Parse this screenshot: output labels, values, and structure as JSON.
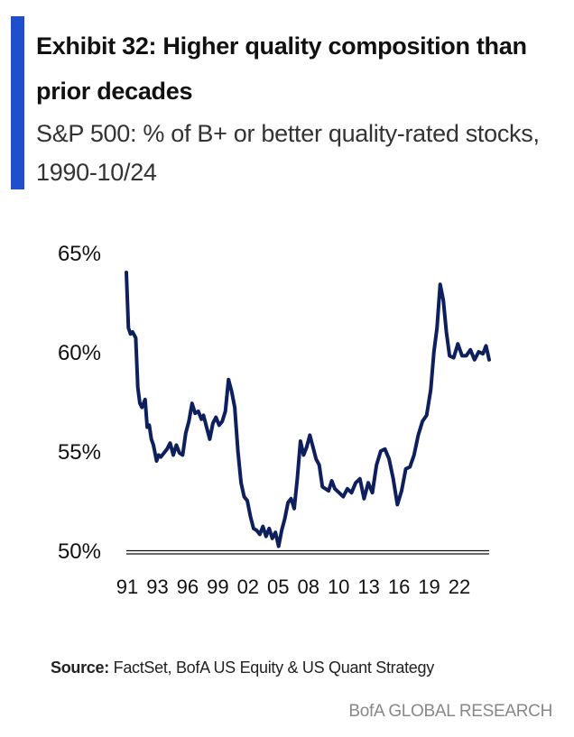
{
  "header": {
    "title": "Exhibit 32: Higher quality composition than prior decades",
    "subtitle": "S&P 500: % of B+ or better quality-rated stocks, 1990-10/24"
  },
  "colors": {
    "accent": "#1f4fcc",
    "line": "#0d1f5c",
    "axis": "#111111"
  },
  "chart_data": {
    "type": "line",
    "title": "",
    "xlabel": "",
    "ylabel": "",
    "ylim": [
      50,
      65
    ],
    "yticks": [
      "50%",
      "55%",
      "60%",
      "65%"
    ],
    "xticks": [
      "91",
      "93",
      "96",
      "99",
      "02",
      "05",
      "08",
      "10",
      "13",
      "16",
      "19",
      "22"
    ],
    "grid": false,
    "legend": "none",
    "series": [
      {
        "x": [
          1990.0,
          1990.2,
          1990.4,
          1990.6,
          1990.9,
          1991.1,
          1991.3,
          1991.5,
          1991.8,
          1992.0,
          1992.2,
          1992.4,
          1992.6,
          1992.9,
          1993.1,
          1993.3,
          1993.6,
          1993.9,
          1994.2,
          1994.5,
          1994.8,
          1995.1,
          1995.4,
          1995.7,
          1996.0,
          1996.3,
          1996.6,
          1996.9,
          1997.2,
          1997.4,
          1997.7,
          1998.0,
          1998.3,
          1998.6,
          1998.9,
          1999.2,
          1999.5,
          1999.8,
          2000.1,
          2000.4,
          2000.7,
          2001.0,
          2001.3,
          2001.6,
          2001.9,
          2002.2,
          2002.5,
          2002.8,
          2003.1,
          2003.4,
          2003.7,
          2004.0,
          2004.3,
          2004.6,
          2004.9,
          2005.2,
          2005.5,
          2005.8,
          2006.1,
          2006.4,
          2006.7,
          2007.0,
          2007.3,
          2007.6,
          2007.9,
          2008.2,
          2008.5,
          2008.8,
          2009.1,
          2009.4,
          2009.7,
          2010.0,
          2010.4,
          2010.8,
          2011.2,
          2011.6,
          2012.0,
          2012.4,
          2012.8,
          2013.2,
          2013.6,
          2014.0,
          2014.4,
          2014.8,
          2015.2,
          2015.6,
          2016.0,
          2016.4,
          2016.8,
          2017.2,
          2017.6,
          2018.0,
          2018.4,
          2018.8,
          2019.2,
          2019.5,
          2019.8,
          2020.1,
          2020.4,
          2020.7,
          2021.0,
          2021.4,
          2021.8,
          2022.2,
          2022.6,
          2023.0,
          2023.4,
          2023.8,
          2024.2,
          2024.5,
          2024.8
        ],
        "values": [
          64.0,
          61.2,
          60.9,
          61.0,
          60.7,
          58.2,
          57.4,
          57.2,
          57.6,
          56.2,
          56.3,
          55.6,
          55.3,
          54.5,
          54.8,
          54.7,
          54.9,
          55.1,
          55.4,
          54.8,
          55.3,
          54.9,
          54.8,
          55.9,
          56.5,
          57.4,
          56.9,
          57.0,
          56.6,
          56.8,
          56.2,
          55.6,
          56.4,
          56.7,
          56.3,
          56.5,
          57.0,
          58.6,
          58.0,
          57.2,
          55.0,
          53.4,
          52.7,
          52.5,
          51.7,
          51.1,
          51.0,
          50.8,
          51.2,
          50.7,
          51.1,
          50.6,
          50.9,
          50.2,
          51.0,
          51.6,
          52.4,
          52.6,
          52.1,
          53.6,
          55.5,
          54.8,
          55.2,
          55.8,
          55.2,
          54.6,
          54.3,
          53.2,
          53.1,
          53.0,
          53.5,
          53.1,
          52.9,
          52.7,
          53.1,
          52.9,
          53.4,
          53.6,
          52.6,
          53.4,
          52.9,
          54.3,
          55.0,
          55.1,
          54.6,
          53.6,
          52.3,
          53.0,
          54.1,
          54.2,
          54.8,
          55.8,
          56.5,
          56.8,
          58.1,
          60.0,
          61.2,
          63.4,
          62.6,
          61.0,
          59.8,
          59.7,
          60.4,
          59.8,
          59.8,
          60.1,
          59.6,
          60.0,
          59.9,
          60.3,
          59.6
        ]
      }
    ]
  },
  "source": {
    "label": "Source:",
    "text": "FactSet, BofA US Equity & US Quant Strategy"
  },
  "footer": {
    "brand": "BofA GLOBAL RESEARCH"
  }
}
